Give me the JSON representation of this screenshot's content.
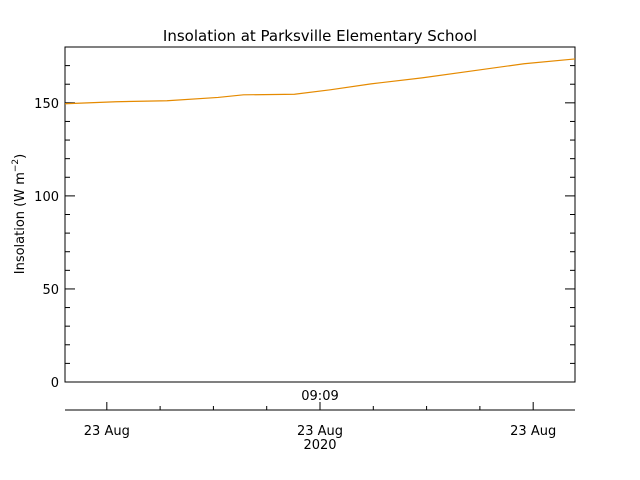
{
  "chart_data": {
    "type": "line",
    "title": "Insolation at Parksville Elementary School",
    "ylabel": "Insolation (W m",
    "ylabel_sup": "−2",
    "ylabel_end": ")",
    "x": [
      0,
      10,
      20,
      30,
      35,
      45,
      52,
      60,
      70,
      80,
      90,
      100
    ],
    "series": [
      {
        "color": "#e58a00",
        "values": [
          149.5,
          150.6,
          151.1,
          152.9,
          154.3,
          154.6,
          157,
          160.2,
          163.4,
          167.2,
          171,
          173.6
        ]
      }
    ],
    "xlim": [
      0,
      100
    ],
    "ylim": [
      0,
      180
    ],
    "yticks": [
      0,
      50,
      100,
      150
    ],
    "xticks": [
      {
        "value": 8.2,
        "label": "23 Aug"
      },
      {
        "value": 50,
        "label": "23 Aug"
      },
      {
        "value": 91.8,
        "label": "23 Aug"
      }
    ],
    "time_label": {
      "value": 50,
      "label": "09:09"
    },
    "year_label": "2020"
  }
}
